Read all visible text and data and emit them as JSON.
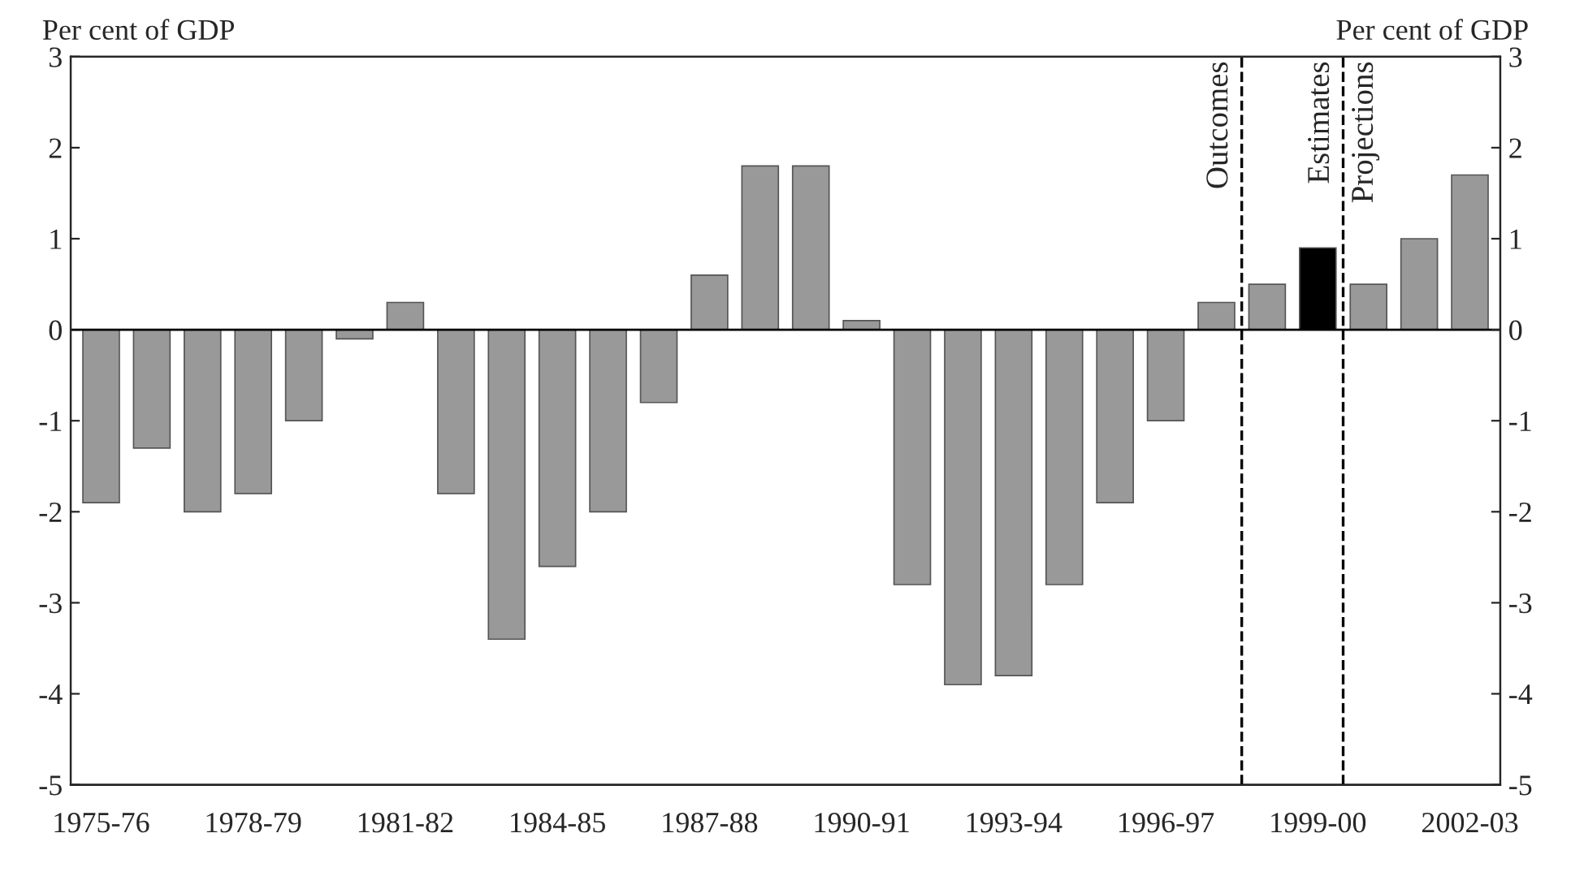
{
  "chart_data": {
    "type": "bar",
    "categories": [
      "1975-76",
      null,
      null,
      "1978-79",
      null,
      null,
      "1981-82",
      null,
      null,
      "1984-85",
      null,
      null,
      "1987-88",
      null,
      null,
      "1990-91",
      null,
      null,
      "1993-94",
      null,
      null,
      "1996-97",
      null,
      null,
      "1999-00",
      null,
      null,
      "2002-03"
    ],
    "values": [
      -1.9,
      -1.3,
      -2.0,
      -1.8,
      -1.0,
      -0.1,
      0.3,
      -1.8,
      -3.4,
      -2.6,
      -2.0,
      -0.8,
      0.6,
      1.8,
      1.8,
      0.1,
      -2.8,
      -3.9,
      -3.8,
      -2.8,
      -1.9,
      -1.0,
      0.3,
      0.5,
      0.9,
      0.5,
      1.0,
      1.7
    ],
    "colors": [
      "#999999",
      "#999999",
      "#999999",
      "#999999",
      "#999999",
      "#999999",
      "#999999",
      "#999999",
      "#999999",
      "#999999",
      "#999999",
      "#999999",
      "#999999",
      "#999999",
      "#999999",
      "#999999",
      "#999999",
      "#999999",
      "#999999",
      "#999999",
      "#999999",
      "#999999",
      "#999999",
      "#999999",
      "#000000",
      "#999999",
      "#999999",
      "#999999"
    ],
    "ylabel": "Per cent of GDP",
    "y2label": "Per cent of GDP",
    "ylim": [
      -5,
      3
    ],
    "yticks": [
      -5,
      -4,
      -3,
      -2,
      -1,
      0,
      1,
      2,
      3
    ],
    "y2lim": [
      -5,
      3
    ],
    "y2ticks": [
      -5,
      -4,
      -3,
      -2,
      -1,
      0,
      1,
      2,
      3
    ],
    "annotations": [
      "Outcomes",
      "Estimates",
      "Projections"
    ],
    "grid": false,
    "legend": false
  }
}
